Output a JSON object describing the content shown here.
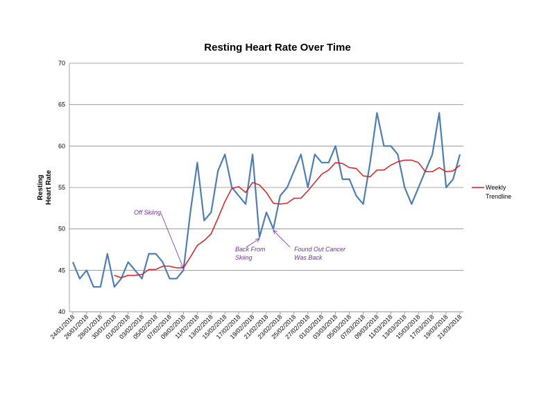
{
  "chart_data": {
    "type": "line",
    "title": "Resting Heart Rate Over Time",
    "ylabel": [
      "Resting",
      "Heart Rate"
    ],
    "xlabel": "",
    "ylim": [
      40,
      70
    ],
    "yticks": [
      40,
      45,
      50,
      55,
      60,
      65,
      70
    ],
    "grid": true,
    "legend_position": "right",
    "x": [
      "24/01/2018",
      "25/01/2018",
      "26/01/2018",
      "27/01/2018",
      "28/01/2018",
      "29/01/2018",
      "30/01/2018",
      "31/01/2018",
      "01/02/2018",
      "02/02/2018",
      "03/02/2018",
      "04/02/2018",
      "05/02/2018",
      "06/02/2018",
      "07/02/2018",
      "08/02/2018",
      "09/02/2018",
      "10/02/2018",
      "11/02/2018",
      "12/02/2018",
      "13/02/2018",
      "14/02/2018",
      "15/02/2018",
      "16/02/2018",
      "17/02/2018",
      "18/02/2018",
      "19/02/2018",
      "20/02/2018",
      "21/02/2018",
      "22/02/2018",
      "23/02/2018",
      "24/02/2018",
      "25/02/2018",
      "26/02/2018",
      "27/02/2018",
      "28/02/2018",
      "01/03/2018",
      "02/03/2018",
      "03/03/2018",
      "04/03/2018",
      "05/03/2018",
      "06/03/2018",
      "07/03/2018",
      "08/03/2018",
      "09/03/2018",
      "10/03/2018",
      "11/03/2018",
      "12/03/2018",
      "13/03/2018",
      "14/03/2018",
      "15/03/2018",
      "16/03/2018",
      "17/03/2018",
      "18/03/2018",
      "19/03/2018",
      "20/03/2018",
      "21/03/2018"
    ],
    "x_tick_labels": [
      "24/01/2018",
      "26/01/2018",
      "28/01/2018",
      "30/01/2018",
      "01/02/2018",
      "03/02/2018",
      "05/02/2018",
      "07/02/2018",
      "09/02/2018",
      "11/02/2018",
      "13/02/2018",
      "15/02/2018",
      "17/02/2018",
      "19/02/2018",
      "21/02/2018",
      "23/02/2018",
      "25/02/2018",
      "27/02/2018",
      "01/03/2018",
      "03/03/2018",
      "05/03/2018",
      "07/03/2018",
      "09/03/2018",
      "11/03/2018",
      "13/03/2018",
      "15/03/2018",
      "17/03/2018",
      "19/03/2018",
      "21/03/2018"
    ],
    "series": [
      {
        "color": "#4a7ebb",
        "values": [
          46,
          44,
          45,
          43,
          43,
          47,
          43,
          44,
          46,
          45,
          44,
          47,
          47,
          46,
          44,
          44,
          45,
          52,
          58,
          51,
          52,
          57,
          59,
          55,
          54,
          53,
          59,
          49,
          52,
          50,
          54,
          55,
          57,
          59,
          55,
          59,
          58,
          58,
          60,
          56,
          56,
          54,
          53,
          58,
          64,
          60,
          60,
          59,
          55,
          53,
          55,
          57,
          59,
          64,
          55,
          56,
          59
        ]
      },
      {
        "name": "Weekly Trendline",
        "color": "#e41a1c",
        "values": [
          null,
          null,
          null,
          null,
          null,
          null,
          44.4,
          44.1,
          44.4,
          44.4,
          44.5,
          45.1,
          45.1,
          45.5,
          45.5,
          45.3,
          45.3,
          46.6,
          48.0,
          48.6,
          49.4,
          51.3,
          53.3,
          54.9,
          55.1,
          54.4,
          55.6,
          55.3,
          54.4,
          53.1,
          53.0,
          53.1,
          53.7,
          53.7,
          54.6,
          55.6,
          56.6,
          57.1,
          58.0,
          57.9,
          57.4,
          57.3,
          56.4,
          56.3,
          57.1,
          57.1,
          57.7,
          58.1,
          58.3,
          58.3,
          58.0,
          56.9,
          56.9,
          57.4,
          56.9,
          57.0,
          57.7
        ]
      }
    ],
    "annotations": [
      {
        "text": [
          "Off Skiing"
        ],
        "target_x": "09/02/2018",
        "target_y": 45.4
      },
      {
        "text": [
          "Back From",
          "Skiing"
        ],
        "target_x": "20/02/2018",
        "target_y": 49
      },
      {
        "text": [
          "Found Out Cancer",
          "Was Back"
        ],
        "target_x": "22/02/2018",
        "target_y": 50
      }
    ],
    "annotation_color": "#7030a0"
  }
}
